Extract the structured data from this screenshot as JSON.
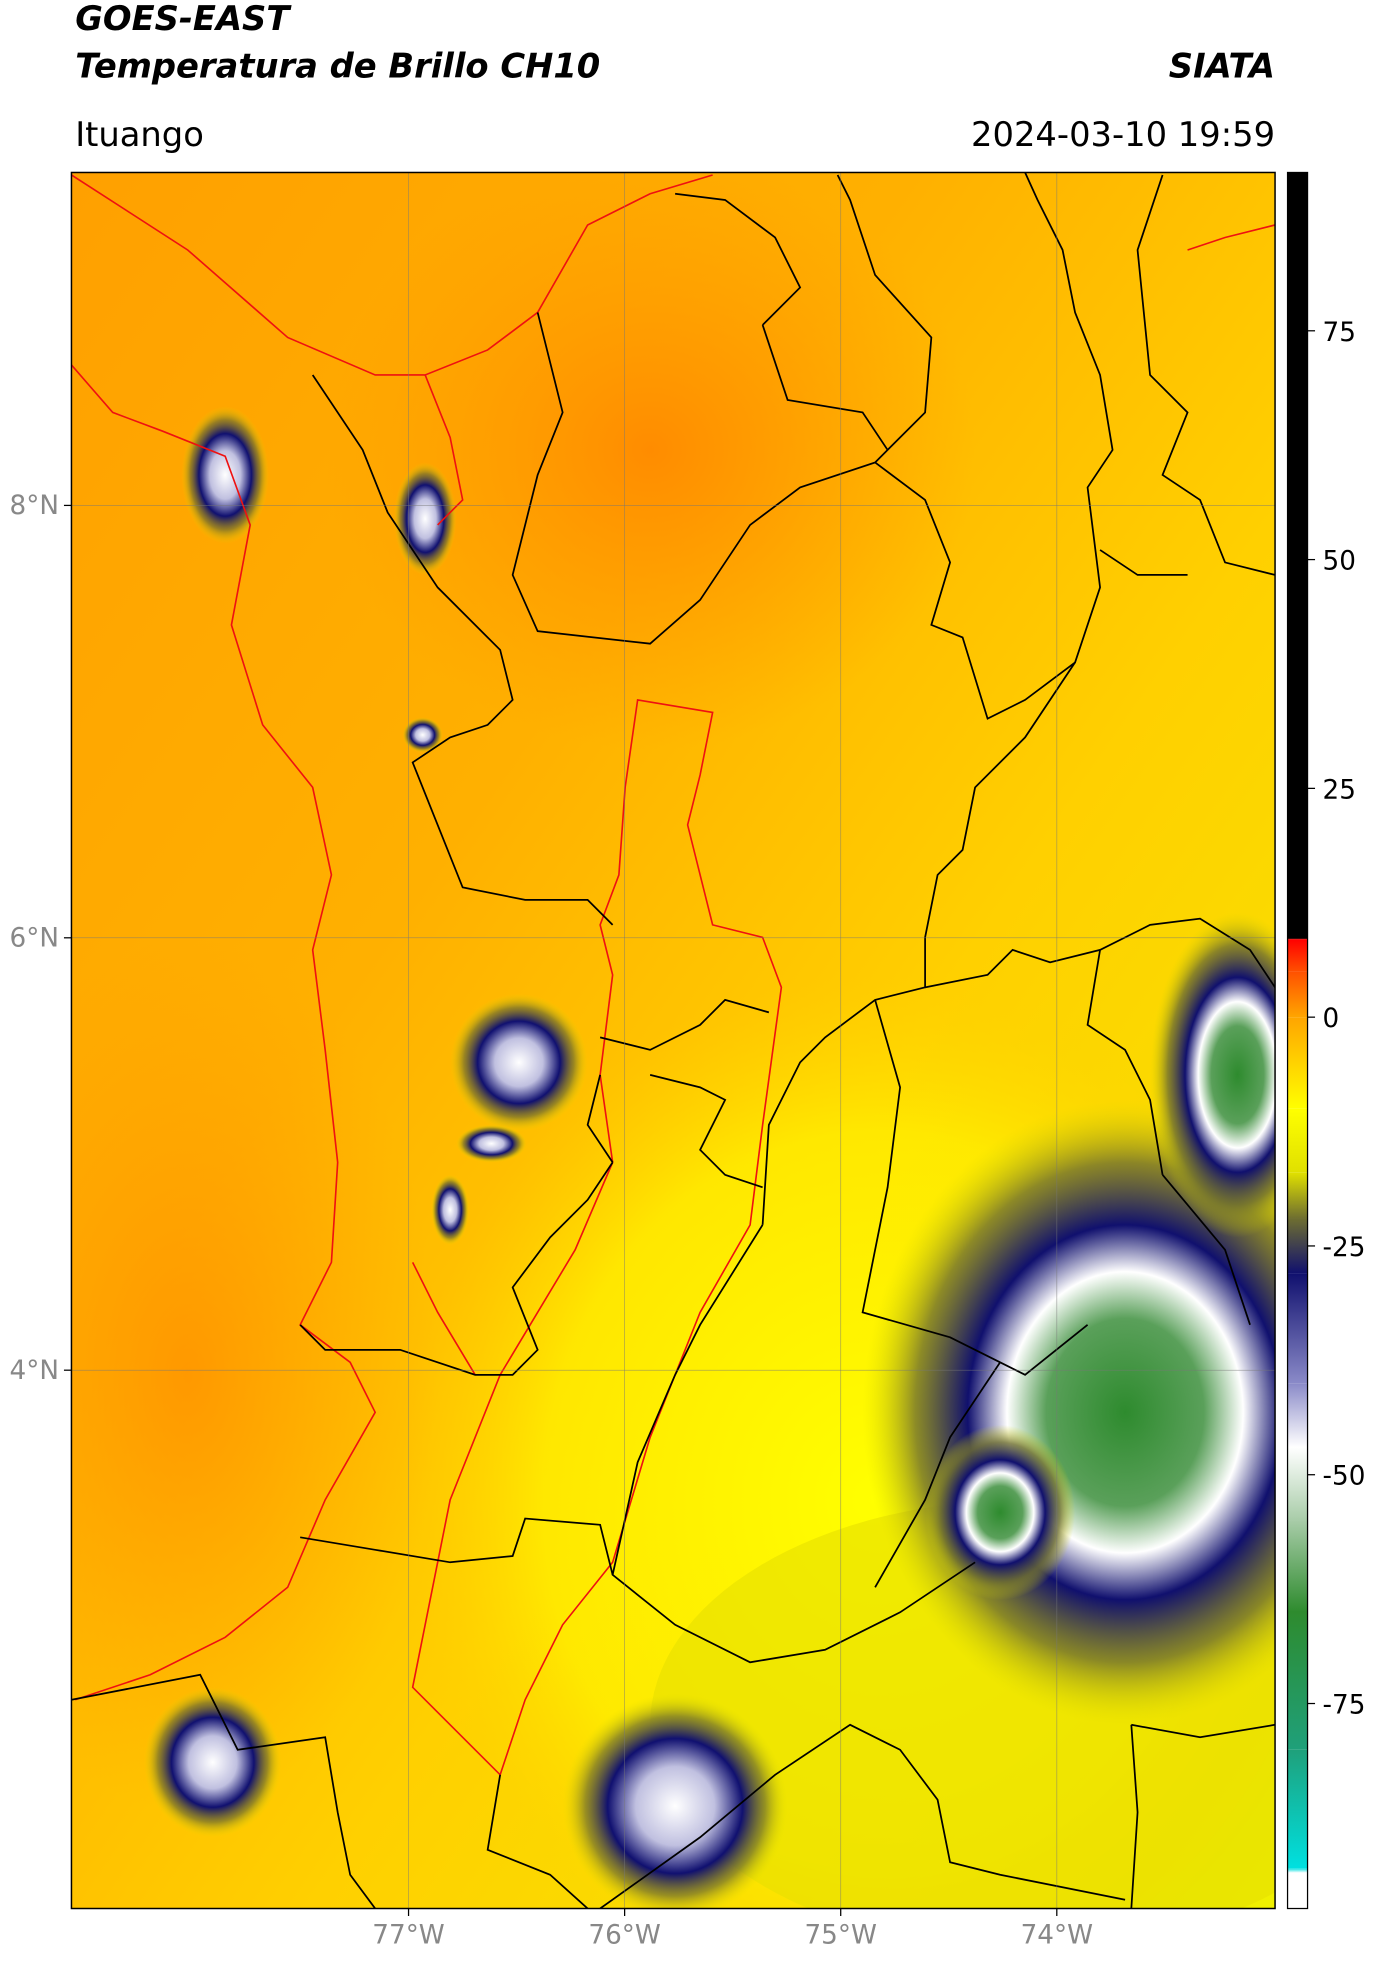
{
  "header": {
    "title": "GOES-EAST",
    "subtitle": "Temperatura de Brillo CH10",
    "source": "SIATA",
    "region": "Ituango",
    "timestamp": "2024-03-10 19:59"
  },
  "map": {
    "xlim": [
      -78.56,
      -72.99
    ],
    "ylim": [
      1.51,
      9.54
    ],
    "xticks": [
      {
        "value": -77,
        "label": "77°W"
      },
      {
        "value": -76,
        "label": "76°W"
      },
      {
        "value": -75,
        "label": "75°W"
      },
      {
        "value": -74,
        "label": "74°W"
      }
    ],
    "yticks": [
      {
        "value": 8,
        "label": "8°N"
      },
      {
        "value": 6,
        "label": "6°N"
      },
      {
        "value": 4,
        "label": "4°N"
      }
    ],
    "grid": true
  },
  "colorbar": {
    "lim": [
      -97.4,
      92.3
    ],
    "ticks": [
      75,
      50,
      25,
      0,
      -25,
      -50,
      -75
    ],
    "stops": [
      {
        "value": -97.4,
        "color": "#ffffff"
      },
      {
        "value": -93.5,
        "color": "#ffffff"
      },
      {
        "value": -93,
        "color": "#00e0e0"
      },
      {
        "value": -80,
        "color": "#1fa07a"
      },
      {
        "value": -65,
        "color": "#2e8b2e"
      },
      {
        "value": -55,
        "color": "#a8cca8"
      },
      {
        "value": -47,
        "color": "#ffffff"
      },
      {
        "value": -40,
        "color": "#8a8ac8"
      },
      {
        "value": -28,
        "color": "#10106e"
      },
      {
        "value": -22,
        "color": "#6e6e30"
      },
      {
        "value": -17,
        "color": "#e0e000"
      },
      {
        "value": -10,
        "color": "#ffff00"
      },
      {
        "value": 0,
        "color": "#ffa500"
      },
      {
        "value": 5,
        "color": "#ff5000"
      },
      {
        "value": 8.5,
        "color": "#ff0000"
      },
      {
        "value": 8.6,
        "color": "#000000"
      },
      {
        "value": 92.3,
        "color": "#000000"
      }
    ]
  }
}
